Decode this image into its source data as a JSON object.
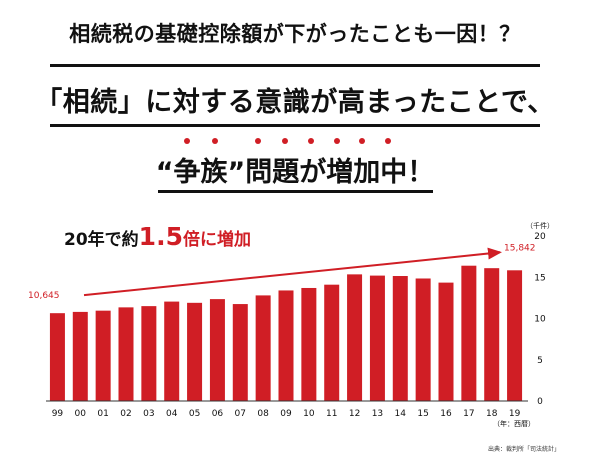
{
  "headlines": {
    "line1": "相続税の基礎控除額が下がったことも一因！？",
    "line2": "「相続」に対する意識が高まったことで、",
    "line3": "“争族”問題が増加中！"
  },
  "emphasis_color": "#d01e25",
  "note": {
    "prefix": "20年で約",
    "value": "1.5",
    "suffix": "倍に増加"
  },
  "source": "出典：裁判所「司法統計」",
  "chart_data": {
    "type": "bar",
    "categories": [
      "99",
      "00",
      "01",
      "02",
      "03",
      "04",
      "05",
      "06",
      "07",
      "08",
      "09",
      "10",
      "11",
      "12",
      "13",
      "14",
      "15",
      "16",
      "17",
      "18",
      "19"
    ],
    "values": [
      10645,
      10800,
      10950,
      11350,
      11500,
      12050,
      11900,
      12350,
      11750,
      12800,
      13400,
      13700,
      14100,
      15350,
      15200,
      15150,
      14850,
      14350,
      16400,
      16100,
      15842
    ],
    "bar_color": "#d01e25",
    "title": "",
    "xlabel": "（年：西暦）",
    "ylabel": "（千件）",
    "ylim": [
      0,
      20
    ],
    "y_ticks": [
      0,
      5,
      10,
      15,
      20
    ],
    "y_axis_side": "right",
    "grid": false,
    "annotations": {
      "start_label": "10,645",
      "end_label": "15,842"
    }
  }
}
